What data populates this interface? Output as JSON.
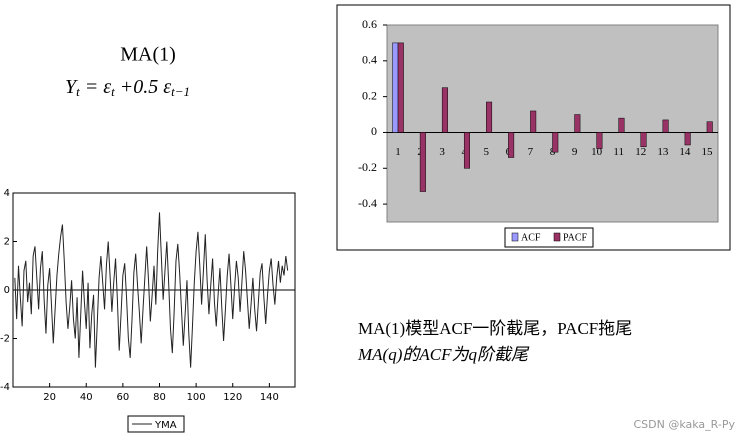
{
  "heading": "MA(1)",
  "formula_parts": [
    "Y",
    "t",
    " = ε",
    "t",
    " +0.5 ε",
    "t−1"
  ],
  "caption": [
    "MA(1)模型ACF一阶截尾，PACF拖尾",
    "MA(q)的ACF为q阶截尾"
  ],
  "watermark": "CSDN @kaka_R-Py",
  "chart_data": [
    {
      "type": "line",
      "series": [
        {
          "name": "YMA",
          "color": "#222222",
          "values": [
            0.5,
            -1.2,
            1.0,
            -0.3,
            -1.5,
            0.8,
            1.2,
            -0.5,
            0.3,
            -1.0,
            1.4,
            1.8,
            0.5,
            -0.8,
            0.9,
            1.6,
            -0.4,
            -1.8,
            0.2,
            0.9,
            -0.6,
            -2.2,
            -0.8,
            0.6,
            1.5,
            2.2,
            2.7,
            1.2,
            -0.5,
            -1.6,
            -0.7,
            0.4,
            -1.2,
            -2.0,
            -0.3,
            -2.8,
            -1.0,
            0.8,
            -0.5,
            -1.6,
            0.3,
            -2.4,
            -1.0,
            -0.2,
            -3.2,
            -1.4,
            0.5,
            1.4,
            0.3,
            -0.8,
            1.0,
            2.0,
            0.6,
            -0.9,
            0.3,
            1.3,
            -0.4,
            -2.5,
            -1.0,
            0.6,
            1.1,
            -0.3,
            -2.0,
            -2.8,
            -1.2,
            0.7,
            1.5,
            0.2,
            -0.9,
            -2.2,
            -0.8,
            0.5,
            1.8,
            0.4,
            -1.3,
            -0.2,
            1.0,
            -0.6,
            1.6,
            3.2,
            1.4,
            -0.4,
            0.8,
            2.0,
            0.3,
            -1.6,
            -2.6,
            -0.9,
            1.2,
            1.9,
            0.7,
            -0.8,
            -2.3,
            -1.0,
            0.4,
            -1.8,
            -3.2,
            -1.5,
            0.3,
            1.6,
            2.4,
            1.0,
            -0.6,
            0.8,
            2.3,
            0.4,
            -1.0,
            0.2,
            1.3,
            -0.5,
            -1.5,
            -0.2,
            0.9,
            -0.7,
            -2.1,
            -0.8,
            0.6,
            1.5,
            0.2,
            -1.2,
            0.1,
            1.2,
            0.5,
            -0.9,
            0.3,
            1.6,
            0.8,
            -0.4,
            -1.6,
            -0.6,
            0.5,
            -0.8,
            -1.7,
            -0.5,
            0.7,
            1.1,
            -0.3,
            -1.4,
            -0.2,
            0.8,
            1.3,
            0.2,
            -0.6,
            0.5,
            1.2,
            0.3,
            1.0,
            0.6,
            1.4,
            0.8
          ]
        }
      ],
      "x": [
        1,
        2,
        3,
        4,
        5,
        6,
        7,
        8,
        9,
        10,
        11,
        12,
        13,
        14,
        15,
        16,
        17,
        18,
        19,
        20,
        21,
        22,
        23,
        24,
        25,
        26,
        27,
        28,
        29,
        30,
        31,
        32,
        33,
        34,
        35,
        36,
        37,
        38,
        39,
        40,
        41,
        42,
        43,
        44,
        45,
        46,
        47,
        48,
        49,
        50,
        51,
        52,
        53,
        54,
        55,
        56,
        57,
        58,
        59,
        60,
        61,
        62,
        63,
        64,
        65,
        66,
        67,
        68,
        69,
        70,
        71,
        72,
        73,
        74,
        75,
        76,
        77,
        78,
        79,
        80,
        81,
        82,
        83,
        84,
        85,
        86,
        87,
        88,
        89,
        90,
        91,
        92,
        93,
        94,
        95,
        96,
        97,
        98,
        99,
        100,
        101,
        102,
        103,
        104,
        105,
        106,
        107,
        108,
        109,
        110,
        111,
        112,
        113,
        114,
        115,
        116,
        117,
        118,
        119,
        120,
        121,
        122,
        123,
        124,
        125,
        126,
        127,
        128,
        129,
        130,
        131,
        132,
        133,
        134,
        135,
        136,
        137,
        138,
        139,
        140,
        141,
        142,
        143,
        144,
        145,
        146,
        147,
        148,
        149,
        150
      ],
      "xlim": [
        0,
        154
      ],
      "xticks": [
        20,
        40,
        60,
        80,
        100,
        120,
        140
      ],
      "ylim": [
        -4,
        4
      ],
      "yticks": [
        -4,
        -2,
        0,
        2,
        4
      ]
    },
    {
      "type": "bar",
      "categories": [
        "1",
        "2",
        "3",
        "4",
        "5",
        "6",
        "7",
        "8",
        "9",
        "10",
        "11",
        "12",
        "13",
        "14",
        "15"
      ],
      "series": [
        {
          "name": "ACF",
          "color": "#9999ff",
          "values": [
            0.5,
            0,
            0,
            0,
            0,
            0,
            0,
            0,
            0,
            0,
            0,
            0,
            0,
            0,
            0
          ]
        },
        {
          "name": "PACF",
          "color": "#993366",
          "values": [
            0.5,
            -0.33,
            0.25,
            -0.2,
            0.17,
            -0.14,
            0.12,
            -0.11,
            0.1,
            -0.09,
            0.08,
            -0.08,
            0.07,
            -0.07,
            0.06
          ]
        }
      ],
      "ylim": [
        -0.5,
        0.6
      ],
      "yticks": [
        -0.4,
        -0.2,
        0,
        0.2,
        0.4,
        0.6
      ]
    }
  ]
}
